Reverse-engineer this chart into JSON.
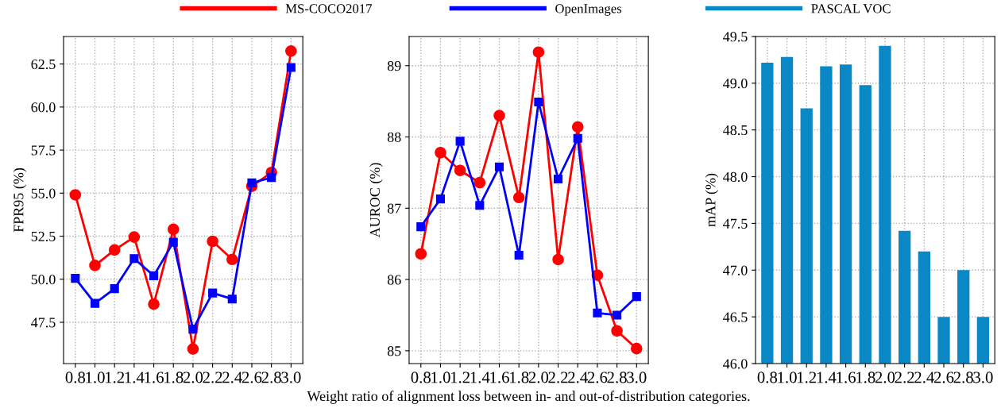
{
  "chart_data": [
    {
      "type": "line",
      "ylabel": "FPR95 (%)",
      "categories": [
        "0.8",
        "1.0",
        "1.2",
        "1.4",
        "1.6",
        "1.8",
        "2.0",
        "2.2",
        "2.4",
        "2.6",
        "2.8",
        "3.0"
      ],
      "series": [
        {
          "name": "MS-COCO2017",
          "color": "#ff0000",
          "marker": "circle",
          "values": [
            54.9,
            50.8,
            51.7,
            52.45,
            48.55,
            52.9,
            45.95,
            52.2,
            51.15,
            55.4,
            56.2,
            63.25
          ]
        },
        {
          "name": "OpenImages",
          "color": "#0000ff",
          "marker": "square",
          "values": [
            50.05,
            48.6,
            49.45,
            51.2,
            50.2,
            52.15,
            47.1,
            49.2,
            48.85,
            55.6,
            55.9,
            62.3
          ]
        }
      ],
      "ylim": [
        45.1,
        64.1
      ],
      "yticks": [
        {
          "value": 47.5,
          "label": "47.5"
        },
        {
          "value": 50,
          "label": "50.0"
        },
        {
          "value": 52.5,
          "label": "52.5"
        },
        {
          "value": 55,
          "label": "55.0"
        },
        {
          "value": 57.5,
          "label": "57.5"
        },
        {
          "value": 60,
          "label": "60.0"
        },
        {
          "value": 62.5,
          "label": "62.5"
        }
      ],
      "grid": true,
      "legend": "top"
    },
    {
      "type": "line",
      "ylabel": "AUROC (%)",
      "xlabel": "Weight ratio of alignment loss between in- and out-of-distribution categories.",
      "categories": [
        "0.8",
        "1.0",
        "1.2",
        "1.4",
        "1.6",
        "1.8",
        "2.0",
        "2.2",
        "2.4",
        "2.6",
        "2.8",
        "3.0"
      ],
      "series": [
        {
          "color": "#ff0000",
          "marker": "circle",
          "values": [
            86.36,
            87.78,
            87.53,
            87.36,
            88.3,
            87.15,
            89.19,
            86.28,
            88.14,
            86.06,
            85.28,
            85.03
          ]
        },
        {
          "color": "#0000ff",
          "marker": "square",
          "values": [
            86.74,
            87.13,
            87.94,
            87.04,
            87.58,
            86.34,
            88.49,
            87.41,
            87.98,
            85.53,
            85.5,
            85.76
          ]
        }
      ],
      "ylim": [
        84.82,
        89.41
      ],
      "yticks": [
        85,
        86,
        87,
        88,
        89
      ],
      "grid": true
    },
    {
      "type": "bar",
      "ylabel": "mAP (%)",
      "categories": [
        "0.8",
        "1.0",
        "1.2",
        "1.4",
        "1.6",
        "1.8",
        "2.0",
        "2.2",
        "2.4",
        "2.6",
        "2.8",
        "3.0"
      ],
      "series": [
        {
          "name": "PASCAL VOC",
          "color": "#0a88c6",
          "values": [
            49.22,
            49.28,
            48.73,
            49.18,
            49.2,
            48.98,
            49.4,
            47.42,
            47.2,
            46.5,
            47.0,
            46.5
          ]
        }
      ],
      "ylim": [
        46.0,
        49.5
      ],
      "yticks": [
        {
          "value": 46,
          "label": "46.0"
        },
        {
          "value": 46.5,
          "label": "46.5"
        },
        {
          "value": 47,
          "label": "47.0"
        },
        {
          "value": 47.5,
          "label": "47.5"
        },
        {
          "value": 48,
          "label": "48.0"
        },
        {
          "value": 48.5,
          "label": "48.5"
        },
        {
          "value": 49,
          "label": "49.0"
        },
        {
          "value": 49.5,
          "label": "49.5"
        }
      ],
      "grid": true,
      "legend": "top"
    }
  ]
}
